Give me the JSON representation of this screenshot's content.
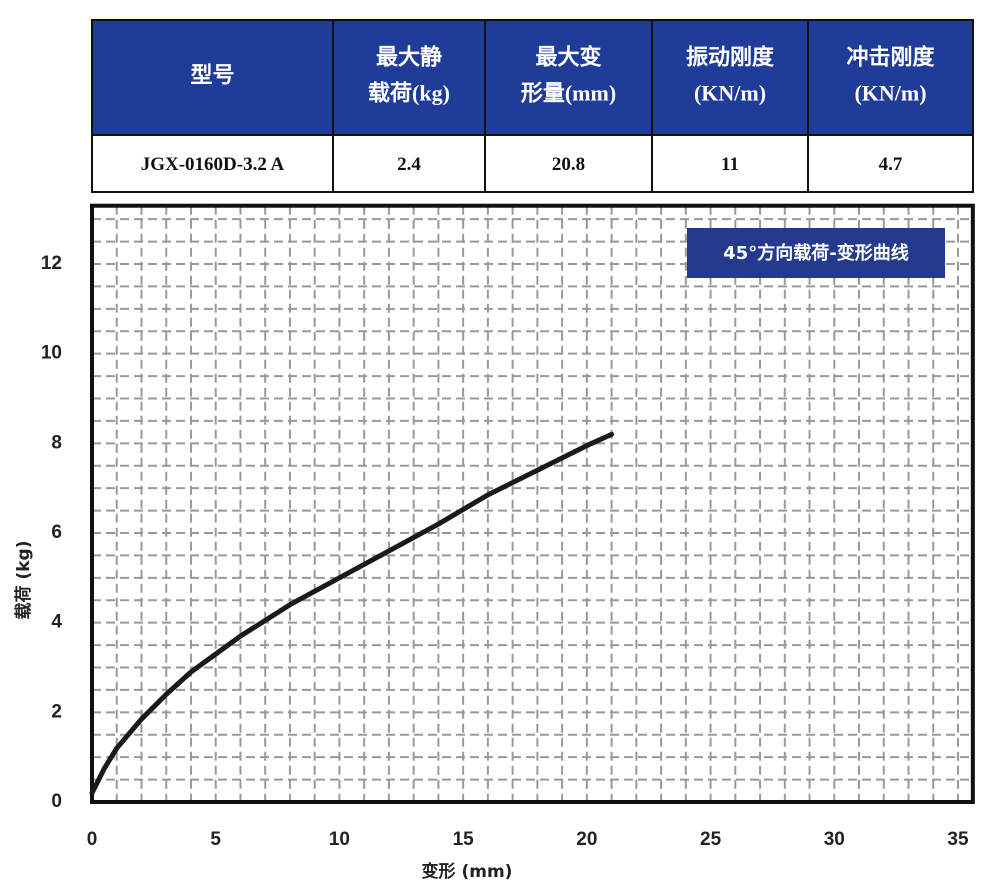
{
  "table": {
    "header": [
      [
        "型号"
      ],
      [
        "最大静",
        "载荷(kg)"
      ],
      [
        "最大变",
        "形量(mm)"
      ],
      [
        "振动刚度",
        "(KN/m)"
      ],
      [
        "冲击刚度",
        "(KN/m)"
      ]
    ],
    "rows": [
      [
        "JGX-0160D-3.2 A",
        "2.4",
        "20.8",
        "11",
        "4.7"
      ]
    ]
  },
  "chart_data": {
    "type": "line",
    "title": "45°方向载荷-变形曲线",
    "x_label": "变形 (mm)",
    "y_label": "载荷 (kg)",
    "x": [
      0,
      0.5,
      1,
      2,
      3,
      4,
      5,
      6,
      8,
      10,
      12,
      14,
      16,
      18,
      20,
      21
    ],
    "series": [
      {
        "name": "45°方向载荷-变形曲线",
        "color": "#1a1a1a",
        "values": [
          0.2,
          0.75,
          1.2,
          1.85,
          2.4,
          2.9,
          3.3,
          3.7,
          4.4,
          5.0,
          5.6,
          6.2,
          6.85,
          7.4,
          7.95,
          8.2
        ]
      }
    ],
    "xlim": [
      0,
      35.6
    ],
    "ylim": [
      0,
      13.3
    ],
    "xticks": [
      0,
      5,
      10,
      15,
      20,
      25,
      30,
      35
    ],
    "yticks": [
      0,
      2,
      4,
      6,
      8,
      10,
      12
    ],
    "grid": {
      "x_step": 1,
      "y_step": 0.5,
      "color": "#999999"
    }
  }
}
